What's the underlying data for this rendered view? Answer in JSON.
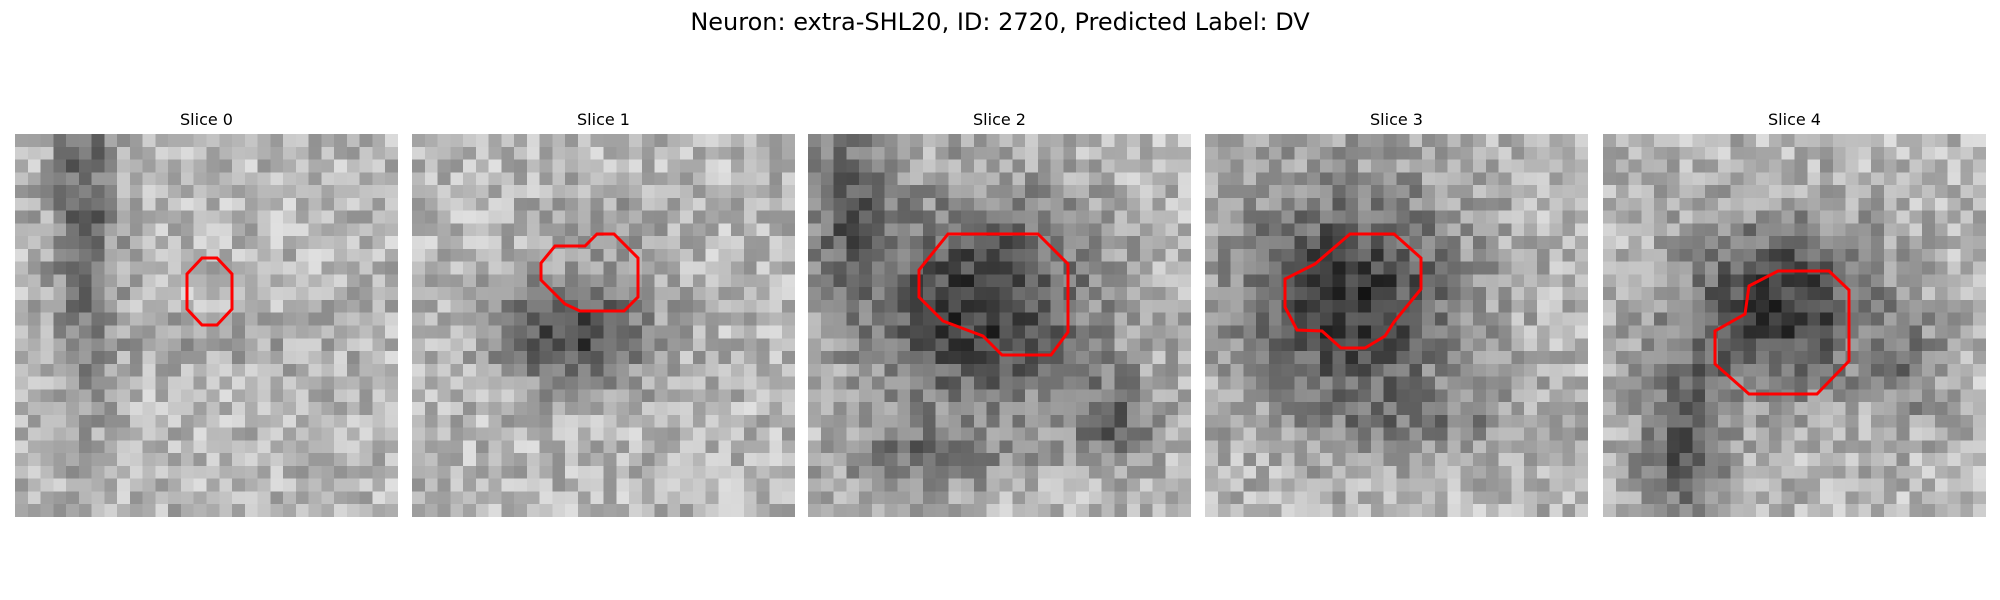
{
  "title": "Neuron: extra-SHL20, ID: 2720, Predicted Label: DV",
  "panels": [
    {
      "label": "Slice 0",
      "seed": 11,
      "blobs": [
        [
          0.18,
          0.25,
          0.08,
          0.5,
          -0.35
        ],
        [
          0.55,
          0.55,
          0.3,
          0.08,
          -0.08
        ]
      ]
    },
    {
      "label": "Slice 1",
      "seed": 23,
      "blobs": [
        [
          0.43,
          0.52,
          0.2,
          0.14,
          -0.45
        ],
        [
          0.5,
          0.22,
          0.15,
          0.08,
          -0.12
        ]
      ]
    },
    {
      "label": "Slice 2",
      "seed": 37,
      "blobs": [
        [
          0.45,
          0.45,
          0.3,
          0.28,
          -0.5
        ],
        [
          0.1,
          0.2,
          0.12,
          0.25,
          -0.3
        ],
        [
          0.8,
          0.75,
          0.12,
          0.12,
          -0.3
        ],
        [
          0.3,
          0.85,
          0.2,
          0.08,
          -0.25
        ]
      ]
    },
    {
      "label": "Slice 3",
      "seed": 53,
      "blobs": [
        [
          0.38,
          0.43,
          0.3,
          0.3,
          -0.5
        ],
        [
          0.6,
          0.75,
          0.3,
          0.08,
          -0.15
        ]
      ]
    },
    {
      "label": "Slice 4",
      "seed": 71,
      "blobs": [
        [
          0.47,
          0.45,
          0.25,
          0.22,
          -0.5
        ],
        [
          0.2,
          0.8,
          0.12,
          0.25,
          -0.35
        ],
        [
          0.8,
          0.6,
          0.1,
          0.15,
          -0.2
        ]
      ]
    }
  ],
  "outline_color": "#ff0000",
  "colormap": "gray"
}
